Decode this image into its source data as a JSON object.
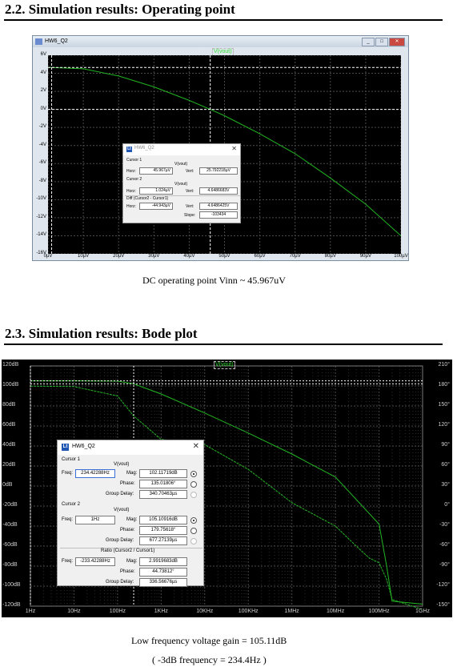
{
  "section_op": {
    "heading": "2.2.  Simulation results: Operating point",
    "caption": "DC operating point Vinn ~ 45.967uV"
  },
  "section_bode": {
    "heading": "2.3.  Simulation results: Bode plot",
    "caption1": "Low frequency voltage gain = 105.11dB",
    "caption2": "( -3dB frequency = 234.4Hz )"
  },
  "colors": {
    "trace": "#22b422",
    "grid": "#4a4a4a",
    "cursor": "#ffffff",
    "plot_bg": "#000000"
  },
  "icons": {
    "window": "ltspice-app-icon",
    "dialog": "ltspice-probe-icon",
    "close": "close-icon"
  },
  "op_window": {
    "title": "HW6_Q2",
    "window_buttons": [
      "_",
      "□",
      "✕"
    ],
    "trace_label": "V(vout)",
    "y_ticks": [
      "6V",
      "4V",
      "2V",
      "0V",
      "-2V",
      "-4V",
      "-6V",
      "-8V",
      "-10V",
      "-12V",
      "-14V",
      "-16V"
    ],
    "x_ticks": [
      "0µV",
      "10µV",
      "20µV",
      "30µV",
      "40µV",
      "50µV",
      "60µV",
      "70µV",
      "80µV",
      "90µV",
      "100µV"
    ],
    "dialog": {
      "title": "HW6_Q2",
      "close": "✕",
      "cursor1": "Cursor 1",
      "cursor2": "Cursor 2",
      "diff": "Diff (Cursor2 - Cursor1)",
      "col_header": "V(vout)",
      "horz_label": "Horz:",
      "vert_label": "Vert:",
      "slope_label": "Slope:",
      "c1_horz": "45.967µV",
      "c1_vert": "25.792218µV",
      "c2_horz": "1.024µV",
      "c2_vert": "4.6486683V",
      "d_horz": "-44.943µV",
      "d_vert": "4.6486425V",
      "d_slope": "-103434"
    }
  },
  "bode_window": {
    "trace_label": "V(vout)",
    "y_left_ticks": [
      "120dB",
      "100dB",
      "80dB",
      "60dB",
      "40dB",
      "20dB",
      "0dB",
      "-20dB",
      "-40dB",
      "-60dB",
      "-80dB",
      "-100dB",
      "-120dB"
    ],
    "y_right_ticks": [
      "210°",
      "180°",
      "150°",
      "120°",
      "90°",
      "60°",
      "30°",
      "0°",
      "-30°",
      "-60°",
      "-90°",
      "-120°",
      "-150°"
    ],
    "x_ticks": [
      "1Hz",
      "10Hz",
      "100Hz",
      "1KHz",
      "10KHz",
      "100KHz",
      "1MHz",
      "10MHz",
      "100MHz",
      "1GHz"
    ],
    "dialog": {
      "title": "HW6_Q2",
      "close": "✕",
      "cursor1": "Cursor 1",
      "cursor2": "Cursor 2",
      "ratio": "Ratio (Cursor2 / Cursor1)",
      "col_header": "V(vout)",
      "freq_label": "Freq:",
      "mag_label": "Mag:",
      "phase_label": "Phase:",
      "gd_label": "Group Delay:",
      "c1_freq": "234.42288Hz",
      "c1_mag": "102.11719dB",
      "c1_phase": "135.01806°",
      "c1_gd": "340.70463µs",
      "c2_freq": "1Hz",
      "c2_mag": "105.10916dB",
      "c2_phase": "179.75618°",
      "c2_gd": "677.27139µs",
      "r_freq": "-233.42288Hz",
      "r_mag": "2.9919683dB",
      "r_phase": "44.73812°",
      "r_gd": "336.56676µs"
    }
  },
  "chart_data": [
    {
      "type": "line",
      "title": "",
      "xlabel": "",
      "ylabel": "",
      "xlim": [
        0,
        100
      ],
      "x_unit": "µV",
      "ylim": [
        -16,
        6
      ],
      "y_unit": "V",
      "grid": true,
      "series": [
        {
          "name": "V(vout)",
          "x": [
            0,
            1,
            10,
            20,
            30,
            40,
            45.967,
            50,
            60,
            70,
            80,
            90,
            100
          ],
          "y": [
            4.65,
            4.65,
            4.5,
            3.7,
            2.5,
            1.0,
            0.0,
            -0.7,
            -2.7,
            -4.9,
            -7.6,
            -10.5,
            -14.0
          ]
        }
      ],
      "cursors": [
        {
          "x": 45.967,
          "y": 0.0
        },
        {
          "x": 1.024,
          "y": 4.65
        }
      ]
    },
    {
      "type": "line",
      "title": "",
      "xlabel": "",
      "ylabel": "",
      "x_scale": "log",
      "xlim": [
        1,
        1000000000
      ],
      "x_unit": "Hz",
      "ylim": [
        -120,
        120
      ],
      "y_unit": "dB",
      "y2lim": [
        -150,
        210
      ],
      "y2_unit": "°",
      "grid": true,
      "series": [
        {
          "name": "V(vout) magnitude",
          "axis": "left",
          "x": [
            1,
            10,
            100,
            234.4,
            1000,
            10000,
            100000,
            1000000,
            10000000,
            100000000,
            150000000,
            200000000,
            1000000000
          ],
          "y": [
            105.1,
            105.1,
            104.8,
            102.1,
            92.0,
            73.0,
            53.0,
            32.0,
            9.0,
            -38.0,
            -80.0,
            -115.0,
            -118.0
          ]
        },
        {
          "name": "V(vout) phase",
          "axis": "right",
          "x": [
            1,
            10,
            100,
            234.4,
            1000,
            10000,
            100000,
            1000000,
            10000000,
            30000000,
            60000000,
            100000000,
            150000000,
            200000000,
            1000000000
          ],
          "y": [
            179.8,
            179,
            165,
            135,
            100,
            92,
            55,
            5,
            -30,
            -60,
            -78,
            -85,
            -110,
            -140,
            -155
          ]
        }
      ],
      "cursors": [
        {
          "x": 234.42288,
          "y": 102.11719
        },
        {
          "x": 1,
          "y": 105.10916
        }
      ]
    }
  ]
}
